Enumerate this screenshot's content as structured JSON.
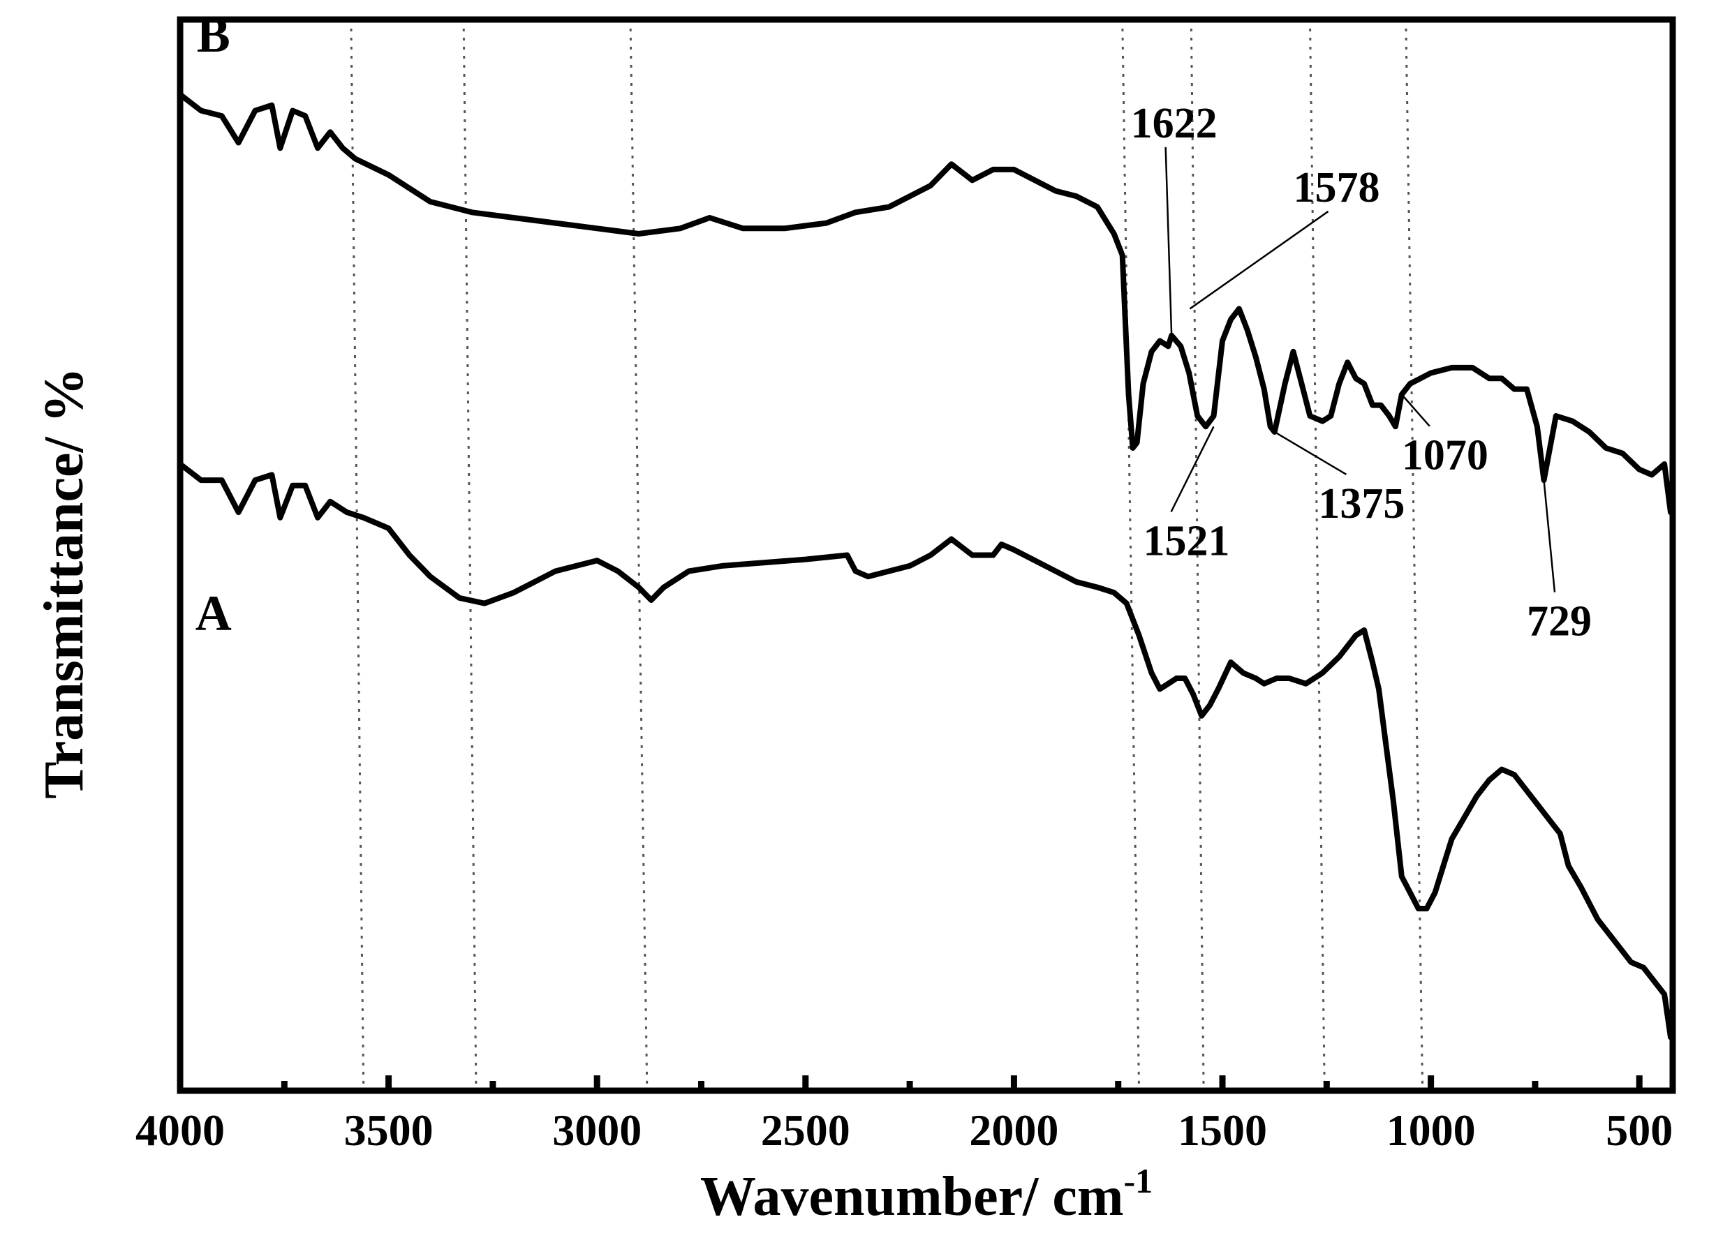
{
  "chart_data": {
    "type": "line",
    "xlabel": "Wavenumber/ cm",
    "xlabel_superscript": "-1",
    "ylabel": "Transmittance/ %",
    "xlim": [
      4000,
      420
    ],
    "ylim": [
      0,
      100
    ],
    "x_reversed": true,
    "yticks_shown": false,
    "grid": "dotted vertical reference lines",
    "xticks": [
      4000,
      3500,
      3000,
      2500,
      2000,
      1500,
      1000,
      500
    ],
    "reference_lines": [
      {
        "x_top": 3590,
        "x_bottom": 3560
      },
      {
        "x_top": 3320,
        "x_bottom": 3290
      },
      {
        "x_top": 2920,
        "x_bottom": 2880
      },
      {
        "x_top": 1740,
        "x_bottom": 1700
      },
      {
        "x_top": 1575,
        "x_bottom": 1545
      },
      {
        "x_top": 1290,
        "x_bottom": 1255
      },
      {
        "x_top": 1060,
        "x_bottom": 1020
      }
    ],
    "series": [
      {
        "name": "B",
        "points": [
          [
            4000,
            93
          ],
          [
            3950,
            91.5
          ],
          [
            3900,
            91
          ],
          [
            3860,
            88.5
          ],
          [
            3820,
            91.5
          ],
          [
            3780,
            92
          ],
          [
            3760,
            88
          ],
          [
            3730,
            91.5
          ],
          [
            3700,
            91
          ],
          [
            3670,
            88
          ],
          [
            3640,
            89.5
          ],
          [
            3610,
            88
          ],
          [
            3580,
            87
          ],
          [
            3500,
            85.5
          ],
          [
            3400,
            83
          ],
          [
            3300,
            82
          ],
          [
            3200,
            81.5
          ],
          [
            3100,
            81
          ],
          [
            3000,
            80.5
          ],
          [
            2900,
            80
          ],
          [
            2800,
            80.5
          ],
          [
            2730,
            81.5
          ],
          [
            2650,
            80.5
          ],
          [
            2550,
            80.5
          ],
          [
            2450,
            81
          ],
          [
            2380,
            82
          ],
          [
            2300,
            82.5
          ],
          [
            2200,
            84.5
          ],
          [
            2150,
            86.5
          ],
          [
            2100,
            85
          ],
          [
            2050,
            86
          ],
          [
            2000,
            86
          ],
          [
            1950,
            85
          ],
          [
            1900,
            84
          ],
          [
            1850,
            83.5
          ],
          [
            1800,
            82.5
          ],
          [
            1760,
            80
          ],
          [
            1740,
            78
          ],
          [
            1725,
            65
          ],
          [
            1715,
            60
          ],
          [
            1705,
            60.5
          ],
          [
            1690,
            66
          ],
          [
            1670,
            69
          ],
          [
            1650,
            70
          ],
          [
            1630,
            69.5
          ],
          [
            1622,
            70.5
          ],
          [
            1600,
            69.5
          ],
          [
            1580,
            67
          ],
          [
            1560,
            63
          ],
          [
            1540,
            62
          ],
          [
            1521,
            63
          ],
          [
            1500,
            70
          ],
          [
            1480,
            72
          ],
          [
            1460,
            73
          ],
          [
            1440,
            71
          ],
          [
            1420,
            68.5
          ],
          [
            1400,
            65.5
          ],
          [
            1385,
            62
          ],
          [
            1375,
            61.5
          ],
          [
            1350,
            66
          ],
          [
            1330,
            69
          ],
          [
            1310,
            66
          ],
          [
            1290,
            63
          ],
          [
            1260,
            62.5
          ],
          [
            1240,
            63
          ],
          [
            1220,
            66
          ],
          [
            1200,
            68
          ],
          [
            1180,
            66.5
          ],
          [
            1160,
            66
          ],
          [
            1140,
            64
          ],
          [
            1120,
            64
          ],
          [
            1100,
            63
          ],
          [
            1085,
            62
          ],
          [
            1070,
            65
          ],
          [
            1050,
            66
          ],
          [
            1000,
            67
          ],
          [
            950,
            67.5
          ],
          [
            900,
            67.5
          ],
          [
            860,
            66.5
          ],
          [
            830,
            66.5
          ],
          [
            800,
            65.5
          ],
          [
            770,
            65.5
          ],
          [
            745,
            62
          ],
          [
            729,
            57
          ],
          [
            700,
            63
          ],
          [
            660,
            62.5
          ],
          [
            620,
            61.5
          ],
          [
            580,
            60
          ],
          [
            540,
            59.5
          ],
          [
            500,
            58
          ],
          [
            470,
            57.5
          ],
          [
            440,
            58.5
          ],
          [
            425,
            54
          ]
        ]
      },
      {
        "name": "A",
        "points": [
          [
            4000,
            58.5
          ],
          [
            3950,
            57
          ],
          [
            3900,
            57
          ],
          [
            3860,
            54
          ],
          [
            3820,
            57
          ],
          [
            3780,
            57.5
          ],
          [
            3760,
            53.5
          ],
          [
            3730,
            56.5
          ],
          [
            3700,
            56.5
          ],
          [
            3670,
            53.5
          ],
          [
            3640,
            55
          ],
          [
            3600,
            54
          ],
          [
            3560,
            53.5
          ],
          [
            3500,
            52.5
          ],
          [
            3450,
            50
          ],
          [
            3400,
            48
          ],
          [
            3330,
            46
          ],
          [
            3270,
            45.5
          ],
          [
            3200,
            46.5
          ],
          [
            3100,
            48.5
          ],
          [
            3000,
            49.5
          ],
          [
            2950,
            48.5
          ],
          [
            2900,
            47
          ],
          [
            2870,
            45.8
          ],
          [
            2840,
            47
          ],
          [
            2780,
            48.5
          ],
          [
            2700,
            49
          ],
          [
            2600,
            49.3
          ],
          [
            2500,
            49.6
          ],
          [
            2400,
            50
          ],
          [
            2380,
            48.5
          ],
          [
            2350,
            48
          ],
          [
            2300,
            48.5
          ],
          [
            2250,
            49
          ],
          [
            2200,
            50
          ],
          [
            2150,
            51.5
          ],
          [
            2100,
            50
          ],
          [
            2050,
            50
          ],
          [
            2030,
            51
          ],
          [
            2000,
            50.5
          ],
          [
            1950,
            49.5
          ],
          [
            1900,
            48.5
          ],
          [
            1850,
            47.5
          ],
          [
            1800,
            47
          ],
          [
            1760,
            46.5
          ],
          [
            1730,
            45.5
          ],
          [
            1700,
            42.5
          ],
          [
            1670,
            39
          ],
          [
            1650,
            37.5
          ],
          [
            1630,
            38
          ],
          [
            1610,
            38.5
          ],
          [
            1590,
            38.5
          ],
          [
            1570,
            37
          ],
          [
            1550,
            35
          ],
          [
            1530,
            36
          ],
          [
            1510,
            37.5
          ],
          [
            1480,
            40
          ],
          [
            1450,
            39
          ],
          [
            1420,
            38.5
          ],
          [
            1400,
            38
          ],
          [
            1370,
            38.5
          ],
          [
            1340,
            38.5
          ],
          [
            1300,
            38
          ],
          [
            1260,
            39
          ],
          [
            1220,
            40.5
          ],
          [
            1180,
            42.5
          ],
          [
            1160,
            43
          ],
          [
            1140,
            40
          ],
          [
            1125,
            37.5
          ],
          [
            1110,
            33
          ],
          [
            1090,
            27
          ],
          [
            1070,
            20
          ],
          [
            1050,
            18.5
          ],
          [
            1030,
            17
          ],
          [
            1010,
            17
          ],
          [
            990,
            18.5
          ],
          [
            970,
            21
          ],
          [
            950,
            23.5
          ],
          [
            920,
            25.5
          ],
          [
            890,
            27.5
          ],
          [
            860,
            29
          ],
          [
            830,
            30
          ],
          [
            800,
            29.5
          ],
          [
            770,
            28
          ],
          [
            740,
            26.5
          ],
          [
            710,
            25
          ],
          [
            690,
            24
          ],
          [
            670,
            21
          ],
          [
            640,
            19
          ],
          [
            600,
            16
          ],
          [
            560,
            14
          ],
          [
            520,
            12
          ],
          [
            490,
            11.5
          ],
          [
            460,
            10
          ],
          [
            440,
            9
          ],
          [
            425,
            5
          ]
        ]
      }
    ],
    "series_labels": [
      {
        "text": "B",
        "x": 3920,
        "y": 97
      },
      {
        "text": "A",
        "x": 3920,
        "y": 43
      }
    ],
    "annotations": [
      {
        "text": "1622",
        "peak": [
          1622,
          70.5
        ],
        "text_at": [
          1720,
          89
        ]
      },
      {
        "text": "1578",
        "peak": [
          1578,
          73
        ],
        "text_at": [
          1330,
          83
        ]
      },
      {
        "text": "1521",
        "peak": [
          1521,
          62
        ],
        "text_at": [
          1690,
          50
        ]
      },
      {
        "text": "1375",
        "peak": [
          1375,
          61.5
        ],
        "text_at": [
          1270,
          53.5
        ]
      },
      {
        "text": "1070",
        "peak": [
          1070,
          65
        ],
        "text_at": [
          1070,
          58
        ]
      },
      {
        "text": "729",
        "peak": [
          729,
          57
        ],
        "text_at": [
          770,
          42.5
        ]
      }
    ]
  }
}
